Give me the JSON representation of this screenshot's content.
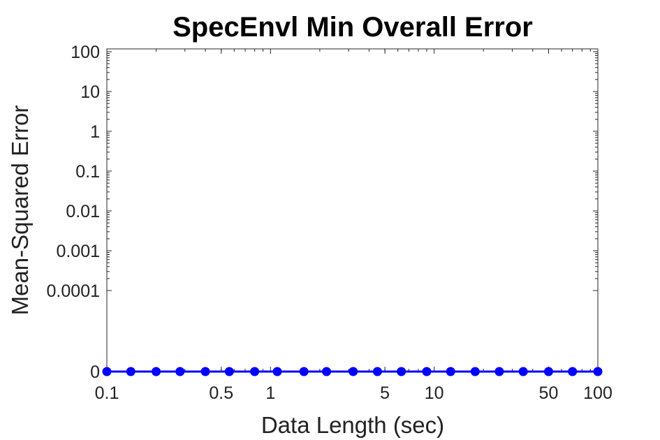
{
  "chart_data": {
    "type": "line",
    "title": "SpecEnvl Min Overall Error",
    "xlabel": "Data Length (sec)",
    "ylabel": "Mean-Squared Error",
    "x_scale": "log",
    "y_scale": "log with zero baseline",
    "xlim": [
      0.1,
      100
    ],
    "ylim": [
      0,
      100
    ],
    "x_ticks": [
      "0.1",
      "0.5",
      "1",
      "5",
      "10",
      "50",
      "100"
    ],
    "y_ticks": [
      "0",
      "0.0001",
      "0.001",
      "0.01",
      "0.1",
      "1",
      "10",
      "100"
    ],
    "grid": false,
    "series": [
      {
        "color": "#0000ff",
        "marker": "circle",
        "x": [
          0.1,
          0.14,
          0.2,
          0.28,
          0.4,
          0.56,
          0.8,
          1.1,
          1.6,
          2.2,
          3.2,
          4.5,
          6.3,
          9,
          12.6,
          17.8,
          25,
          35,
          50,
          70,
          100
        ],
        "y": [
          0,
          0,
          0,
          0,
          0,
          0,
          0,
          0,
          0,
          0,
          0,
          0,
          0,
          0,
          0,
          0,
          0,
          0,
          0,
          0,
          0
        ]
      }
    ]
  }
}
